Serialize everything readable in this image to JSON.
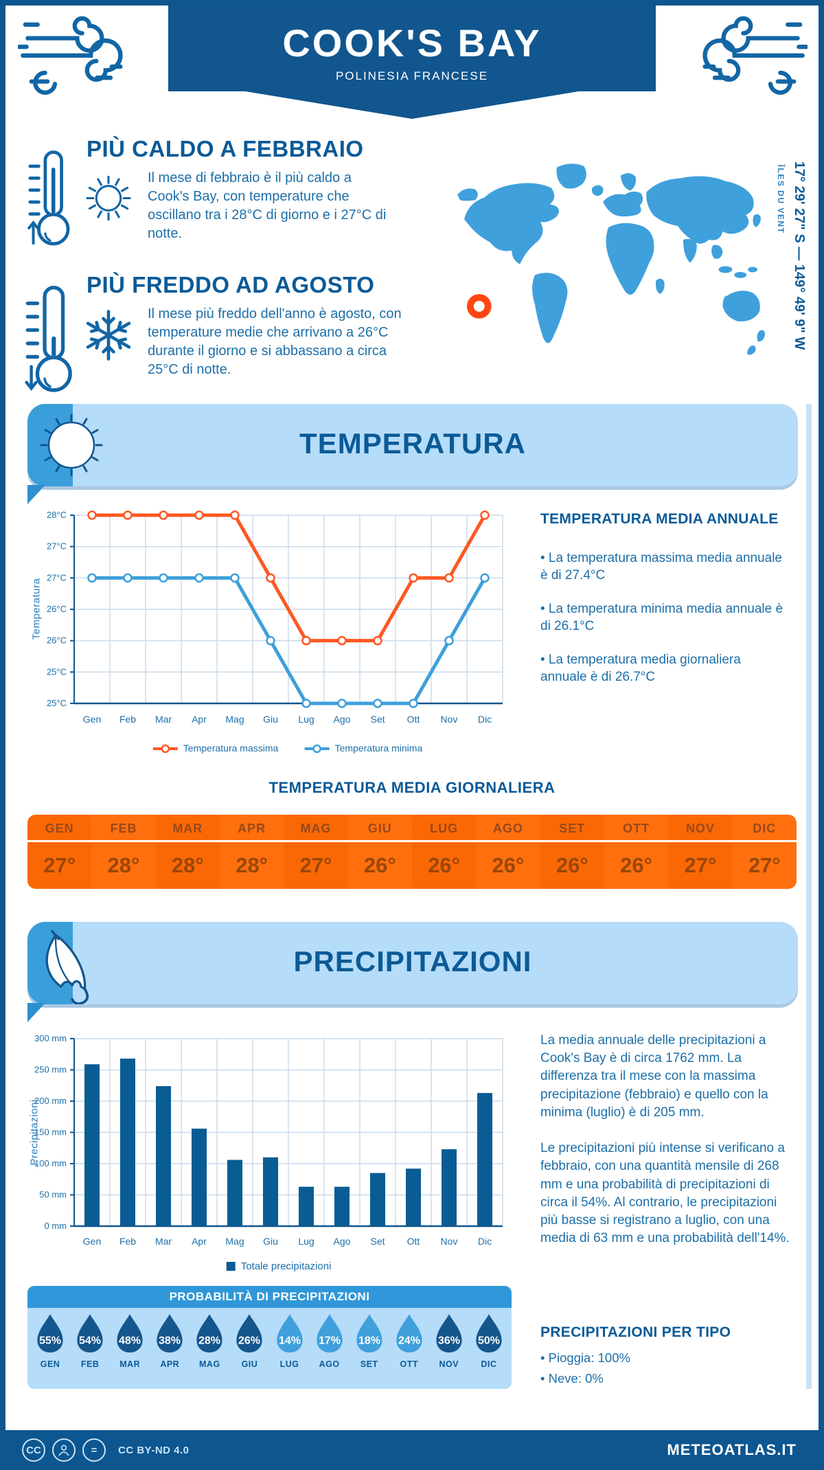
{
  "header": {
    "title": "COOK'S  BAY",
    "subtitle": "POLINESIA FRANCESE"
  },
  "location": {
    "coordinates": "17° 29' 27\" S — 149° 49' 9\" W",
    "region": "ÎLES DU VENT"
  },
  "highlights": [
    {
      "title": "PIÙ CALDO A FEBBRAIO",
      "text": "Il mese di febbraio è il più caldo a Cook's Bay, con temperature che oscillano tra i 28°C di giorno e i 27°C di notte."
    },
    {
      "title": "PIÙ FREDDO AD AGOSTO",
      "text": "Il mese più freddo dell'anno è agosto, con temperature medie che arrivano a 26°C durante il giorno e si abbassano a circa 25°C di notte."
    }
  ],
  "sections": {
    "temperature": "TEMPERATURA",
    "precipitation": "PRECIPITAZIONI"
  },
  "chart_data": [
    {
      "type": "line",
      "categories": [
        "Gen",
        "Feb",
        "Mar",
        "Apr",
        "Mag",
        "Giu",
        "Lug",
        "Ago",
        "Set",
        "Ott",
        "Nov",
        "Dic"
      ],
      "series": [
        {
          "name": "Temperatura massima",
          "color": "#FF5722",
          "values": [
            28,
            28,
            28,
            28,
            28,
            27,
            26,
            26,
            26,
            27,
            27,
            28
          ]
        },
        {
          "name": "Temperatura minima",
          "color": "#3E9FDB",
          "values": [
            27,
            27,
            27,
            27,
            27,
            26,
            25,
            25,
            25,
            25,
            26,
            27
          ]
        }
      ],
      "ylabel": "Temperatura",
      "ylim": [
        25,
        28
      ],
      "ytick_step": 0.5,
      "ytick_labels_bottom_up": [
        "25°C",
        "25°C",
        "26°C",
        "26°C",
        "27°C",
        "27°C",
        "28°C"
      ],
      "grid": true,
      "legend_position": "bottom"
    },
    {
      "type": "bar",
      "categories": [
        "Gen",
        "Feb",
        "Mar",
        "Apr",
        "Mag",
        "Giu",
        "Lug",
        "Ago",
        "Set",
        "Ott",
        "Nov",
        "Dic"
      ],
      "values": [
        259,
        268,
        224,
        156,
        106,
        110,
        63,
        63,
        85,
        92,
        123,
        213
      ],
      "series_name": "Totale precipitazioni",
      "color": "#095C94",
      "ylabel": "Precipitazioni",
      "ylim": [
        0,
        300
      ],
      "ytick_step": 50,
      "ytick_labels_bottom_up": [
        "0 mm",
        "50 mm",
        "100 mm",
        "150 mm",
        "200 mm",
        "250 mm",
        "300 mm"
      ],
      "grid": true,
      "legend_position": "bottom"
    }
  ],
  "annual": {
    "title": "TEMPERATURA MEDIA ANNUALE",
    "bullets": [
      "• La temperatura massima media annuale è di 27.4°C",
      "• La temperatura minima media annuale è di 26.1°C",
      "• La temperatura media giornaliera annuale è di 26.7°C"
    ]
  },
  "daily_table": {
    "title": "TEMPERATURA MEDIA GIORNALIERA",
    "months": [
      "GEN",
      "FEB",
      "MAR",
      "APR",
      "MAG",
      "GIU",
      "LUG",
      "AGO",
      "SET",
      "OTT",
      "NOV",
      "DIC"
    ],
    "values": [
      "27°",
      "28°",
      "28°",
      "28°",
      "27°",
      "26°",
      "26°",
      "26°",
      "26°",
      "26°",
      "27°",
      "27°"
    ]
  },
  "precipitation_text": {
    "paragraphs": [
      "La media annuale delle precipitazioni a Cook's  Bay è di circa 1762 mm. La differenza tra il mese con la massima precipitazione (febbraio) e quello con la minima (luglio) è di 205 mm.",
      "Le precipitazioni più intense si verificano a febbraio, con una quantità mensile di 268 mm e una probabilità di precipitazioni di circa il 54%. Al contrario, le precipitazioni più basse si registrano a luglio, con una media di 63 mm e una probabilità dell'14%."
    ]
  },
  "probability": {
    "title": "PROBABILITÀ DI PRECIPITAZIONI",
    "months": [
      "GEN",
      "FEB",
      "MAR",
      "APR",
      "MAG",
      "GIU",
      "LUG",
      "AGO",
      "SET",
      "OTT",
      "NOV",
      "DIC"
    ],
    "values": [
      "55%",
      "54%",
      "48%",
      "38%",
      "28%",
      "26%",
      "14%",
      "17%",
      "18%",
      "24%",
      "36%",
      "50%"
    ],
    "dark": [
      true,
      true,
      true,
      true,
      true,
      true,
      false,
      false,
      false,
      false,
      true,
      true
    ]
  },
  "precip_type": {
    "title": "PRECIPITAZIONI PER TIPO",
    "items": [
      "• Pioggia: 100%",
      "• Neve: 0%"
    ]
  },
  "footer": {
    "license": "CC BY-ND 4.0",
    "site": "METEOATLAS.IT"
  },
  "colors": {
    "primary_dark": "#0F568E",
    "banner": "#11568E",
    "band_bg": "#B5DCF8",
    "band_accent": "#3A9EDB",
    "map_blue": "#3FA0DC",
    "marker_orange": "#FF4714",
    "table_orange": "#FA6806",
    "drop_dark": "#15568D",
    "drop_light": "#3FA0DC",
    "text_blue": "#1D6FA8",
    "heading_blue": "#0B5A97",
    "grid_line": "#C9DAEB"
  }
}
